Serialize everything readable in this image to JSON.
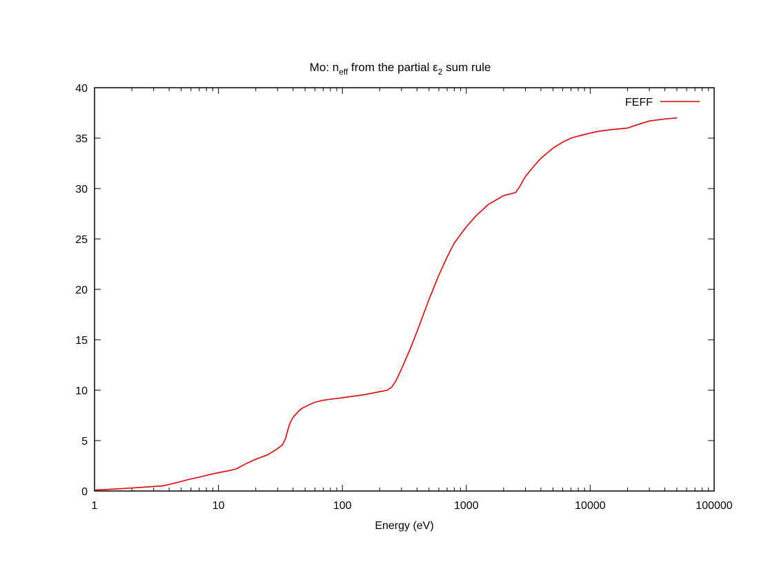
{
  "chart_data": {
    "type": "line",
    "title": {
      "prefix": "Mo: n",
      "n_subscript": "eff",
      "middle": " from the partial ",
      "epsilon": "ε",
      "epsilon_subscript": "2",
      "suffix": " sum rule"
    },
    "xlabel": "Energy (eV)",
    "ylabel": "",
    "x_scale": "log",
    "xlim": [
      1,
      100000
    ],
    "ylim": [
      0,
      40
    ],
    "x_ticks": [
      1,
      10,
      100,
      1000,
      10000,
      100000
    ],
    "x_tick_labels": [
      "1",
      "10",
      "100",
      "1000",
      "10000",
      "100000"
    ],
    "y_ticks": [
      0,
      5,
      10,
      15,
      20,
      25,
      30,
      35,
      40
    ],
    "y_tick_labels": [
      "0",
      "5",
      "10",
      "15",
      "20",
      "25",
      "30",
      "35",
      "40"
    ],
    "grid": false,
    "legend_position": "top-right",
    "series": [
      {
        "name": "FEFF",
        "color": "#e00000",
        "x": [
          1,
          1.5,
          2,
          2.5,
          3,
          3.5,
          4,
          5,
          6,
          7,
          8,
          9,
          10,
          12,
          14,
          15,
          16,
          18,
          20,
          25,
          30,
          33,
          35,
          36,
          37,
          38,
          40,
          42,
          45,
          48,
          50,
          55,
          60,
          70,
          80,
          100,
          150,
          200,
          230,
          250,
          270,
          300,
          350,
          400,
          500,
          600,
          700,
          800,
          1000,
          1200,
          1500,
          2000,
          2500,
          2700,
          3000,
          3500,
          4000,
          5000,
          6000,
          7000,
          8000,
          10000,
          12000,
          15000,
          20000,
          25000,
          30000,
          40000,
          50000
        ],
        "y": [
          0.1,
          0.2,
          0.3,
          0.38,
          0.45,
          0.5,
          0.65,
          0.95,
          1.2,
          1.38,
          1.55,
          1.7,
          1.82,
          2.0,
          2.2,
          2.4,
          2.6,
          2.9,
          3.15,
          3.6,
          4.2,
          4.6,
          5.3,
          5.9,
          6.4,
          6.8,
          7.3,
          7.6,
          8.0,
          8.25,
          8.35,
          8.6,
          8.8,
          9.0,
          9.1,
          9.25,
          9.55,
          9.85,
          10.0,
          10.3,
          10.9,
          12.1,
          14.0,
          15.8,
          19.0,
          21.4,
          23.2,
          24.6,
          26.2,
          27.3,
          28.4,
          29.3,
          29.6,
          30.2,
          31.2,
          32.2,
          33.0,
          34.0,
          34.6,
          35.0,
          35.2,
          35.5,
          35.7,
          35.85,
          36.0,
          36.4,
          36.7,
          36.9,
          37.0
        ]
      }
    ]
  }
}
